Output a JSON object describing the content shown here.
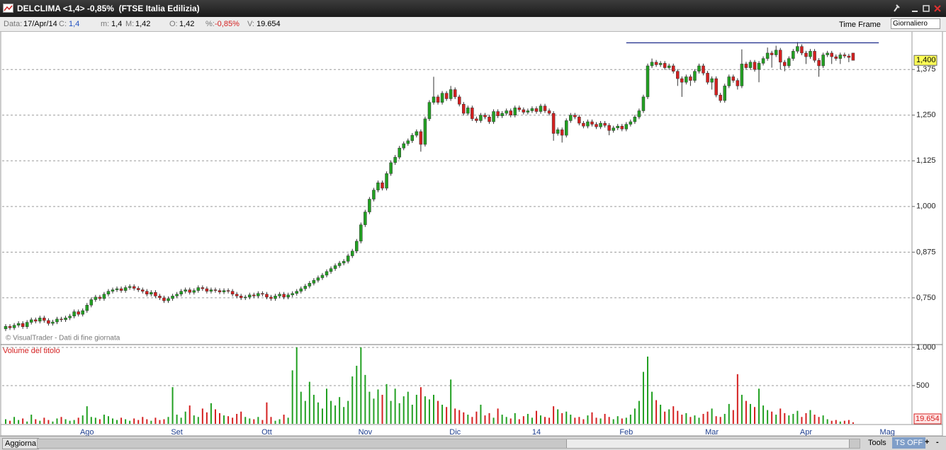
{
  "header": {
    "title": "DELCLIMA <1,4> -0,85%  (FTSE Italia Edilizia)",
    "fields": [
      {
        "label": "Data:",
        "value": "17/Apr/14"
      },
      {
        "label": "C:",
        "value": "1,4"
      },
      {
        "label": "m:",
        "value": "1,4"
      },
      {
        "label": "M:",
        "value": "1,42"
      },
      {
        "label": "O:",
        "value": "1,42"
      },
      {
        "label": "%:",
        "value": "-0,85%"
      },
      {
        "label": "V:",
        "value": "19.654"
      }
    ],
    "time_frame": "Time Frame",
    "interval": "Giornaliero"
  },
  "chart_data": {
    "type": "candlestick",
    "categories": [
      null,
      null,
      null,
      null,
      null,
      null,
      null,
      null,
      null,
      null,
      null,
      null,
      null,
      null,
      null,
      null,
      null,
      null,
      null,
      "Ago",
      null,
      null,
      null,
      null,
      null,
      null,
      null,
      null,
      null,
      null,
      null,
      null,
      null,
      null,
      null,
      null,
      null,
      null,
      null,
      null,
      "Set",
      null,
      null,
      null,
      null,
      null,
      null,
      null,
      null,
      null,
      null,
      null,
      null,
      null,
      null,
      null,
      null,
      null,
      null,
      null,
      null,
      "Ott",
      null,
      null,
      null,
      null,
      null,
      null,
      null,
      null,
      null,
      null,
      null,
      null,
      null,
      null,
      null,
      null,
      null,
      null,
      null,
      null,
      null,
      null,
      "Nov",
      null,
      null,
      null,
      null,
      null,
      null,
      null,
      null,
      null,
      null,
      null,
      null,
      null,
      null,
      null,
      null,
      null,
      null,
      null,
      null,
      "Dic",
      null,
      null,
      null,
      null,
      null,
      null,
      null,
      null,
      null,
      null,
      null,
      null,
      null,
      null,
      null,
      null,
      null,
      null,
      "14",
      null,
      null,
      null,
      null,
      null,
      null,
      null,
      null,
      null,
      null,
      null,
      null,
      null,
      null,
      null,
      null,
      null,
      null,
      null,
      null,
      "Feb",
      null,
      null,
      null,
      null,
      null,
      null,
      null,
      null,
      null,
      null,
      null,
      null,
      null,
      null,
      null,
      null,
      null,
      null,
      null,
      "Mar",
      null,
      null,
      null,
      null,
      null,
      null,
      null,
      null,
      null,
      null,
      null,
      null,
      null,
      null,
      null,
      null,
      null,
      null,
      null,
      null,
      null,
      "Apr",
      null,
      null,
      null,
      null,
      null,
      null,
      null,
      null,
      null,
      null,
      null,
      null,
      null,
      null,
      null,
      null,
      null,
      null,
      "Mag",
      null,
      null,
      null,
      null,
      null
    ],
    "open": [
      0.665,
      0.672,
      0.668,
      0.675,
      0.68,
      0.671,
      0.683,
      0.69,
      0.686,
      0.695,
      0.688,
      0.68,
      0.684,
      0.692,
      0.69,
      0.695,
      0.7,
      0.712,
      0.705,
      0.715,
      0.73,
      0.745,
      0.752,
      0.748,
      0.76,
      0.768,
      0.772,
      0.775,
      0.77,
      0.778,
      0.781,
      0.776,
      0.772,
      0.768,
      0.76,
      0.765,
      0.755,
      0.75,
      0.742,
      0.748,
      0.755,
      0.76,
      0.768,
      0.772,
      0.765,
      0.77,
      0.778,
      0.775,
      0.768,
      0.772,
      0.77,
      0.766,
      0.77,
      0.768,
      0.76,
      0.755,
      0.75,
      0.752,
      0.758,
      0.755,
      0.762,
      0.76,
      0.752,
      0.748,
      0.755,
      0.76,
      0.752,
      0.758,
      0.762,
      0.768,
      0.775,
      0.782,
      0.79,
      0.798,
      0.805,
      0.812,
      0.822,
      0.83,
      0.838,
      0.845,
      0.85,
      0.865,
      0.878,
      0.905,
      0.95,
      0.985,
      1.02,
      1.045,
      1.065,
      1.05,
      1.09,
      1.12,
      1.135,
      1.16,
      1.172,
      1.18,
      1.195,
      1.205,
      1.17,
      1.24,
      1.285,
      1.3,
      1.285,
      1.31,
      1.295,
      1.32,
      1.3,
      1.28,
      1.255,
      1.27,
      1.24,
      1.235,
      1.25,
      1.245,
      1.232,
      1.26,
      1.248,
      1.255,
      1.262,
      1.25,
      1.27,
      1.265,
      1.258,
      1.262,
      1.268,
      1.26,
      1.275,
      1.262,
      1.255,
      1.2,
      1.21,
      1.195,
      1.235,
      1.25,
      1.245,
      1.228,
      1.22,
      1.232,
      1.225,
      1.218,
      1.228,
      1.222,
      1.208,
      1.215,
      1.22,
      1.212,
      1.225,
      1.232,
      1.245,
      1.262,
      1.3,
      1.385,
      1.395,
      1.388,
      1.392,
      1.38,
      1.385,
      1.37,
      1.35,
      1.34,
      1.355,
      1.345,
      1.37,
      1.385,
      1.365,
      1.34,
      1.35,
      1.305,
      1.29,
      1.33,
      1.355,
      1.345,
      1.33,
      1.39,
      1.38,
      1.395,
      1.375,
      1.392,
      1.405,
      1.42,
      1.415,
      1.428,
      1.395,
      1.385,
      1.405,
      1.425,
      1.438,
      1.42,
      1.41,
      1.425,
      1.4,
      1.385,
      1.415,
      1.42,
      1.41,
      1.405,
      1.415,
      1.412,
      1.42,
      null,
      null,
      null,
      null,
      null,
      null,
      null,
      null,
      null,
      null,
      null,
      null,
      null
    ],
    "high": [
      0.678,
      0.678,
      0.681,
      0.686,
      0.686,
      0.689,
      0.696,
      0.696,
      0.701,
      0.701,
      0.694,
      0.69,
      0.698,
      0.698,
      0.701,
      0.706,
      0.718,
      0.718,
      0.721,
      0.736,
      0.751,
      0.758,
      0.758,
      0.766,
      0.774,
      0.778,
      0.781,
      0.781,
      0.784,
      0.787,
      0.787,
      0.782,
      0.778,
      0.774,
      0.771,
      0.771,
      0.761,
      0.756,
      0.754,
      0.761,
      0.766,
      0.774,
      0.778,
      0.778,
      0.776,
      0.784,
      0.784,
      0.781,
      0.778,
      0.778,
      0.776,
      0.776,
      0.776,
      0.774,
      0.766,
      0.761,
      0.758,
      0.764,
      0.764,
      0.768,
      0.768,
      0.766,
      0.758,
      0.761,
      0.766,
      0.766,
      0.764,
      0.768,
      0.774,
      0.781,
      0.788,
      0.796,
      0.804,
      0.811,
      0.818,
      0.828,
      0.836,
      0.844,
      0.851,
      0.856,
      0.871,
      0.884,
      0.911,
      0.956,
      0.991,
      1.026,
      1.051,
      1.071,
      1.071,
      1.096,
      1.126,
      1.141,
      1.166,
      1.178,
      1.186,
      1.201,
      1.211,
      1.211,
      1.246,
      1.291,
      1.355,
      1.306,
      1.316,
      1.316,
      1.33,
      1.326,
      1.306,
      1.286,
      1.276,
      1.276,
      1.246,
      1.256,
      1.256,
      1.251,
      1.266,
      1.266,
      1.261,
      1.268,
      1.268,
      1.276,
      1.276,
      1.271,
      1.268,
      1.274,
      1.274,
      1.281,
      1.281,
      1.268,
      1.261,
      1.216,
      1.216,
      1.241,
      1.256,
      1.256,
      1.251,
      1.234,
      1.238,
      1.238,
      1.231,
      1.234,
      1.234,
      1.228,
      1.221,
      1.226,
      1.226,
      1.231,
      1.238,
      1.251,
      1.268,
      1.306,
      1.391,
      1.405,
      1.401,
      1.398,
      1.398,
      1.391,
      1.391,
      1.376,
      1.356,
      1.361,
      1.361,
      1.376,
      1.391,
      1.391,
      1.371,
      1.356,
      1.356,
      1.311,
      1.336,
      1.361,
      1.361,
      1.351,
      1.43,
      1.396,
      1.401,
      1.401,
      1.398,
      1.411,
      1.435,
      1.426,
      1.44,
      1.434,
      1.401,
      1.411,
      1.431,
      1.45,
      1.444,
      1.426,
      1.431,
      1.431,
      1.406,
      1.421,
      1.426,
      1.426,
      1.416,
      1.421,
      1.421,
      1.418,
      1.42,
      null,
      null,
      null,
      null,
      null,
      null,
      null,
      null,
      null,
      null,
      null,
      null,
      null
    ],
    "low": [
      0.659,
      0.662,
      0.662,
      0.669,
      0.665,
      0.665,
      0.677,
      0.68,
      0.68,
      0.682,
      0.674,
      0.674,
      0.678,
      0.684,
      0.684,
      0.689,
      0.694,
      0.699,
      0.699,
      0.709,
      0.724,
      0.739,
      0.742,
      0.742,
      0.754,
      0.762,
      0.766,
      0.764,
      0.764,
      0.772,
      0.77,
      0.766,
      0.762,
      0.754,
      0.754,
      0.749,
      0.744,
      0.736,
      0.736,
      0.742,
      0.749,
      0.754,
      0.762,
      0.759,
      0.759,
      0.764,
      0.769,
      0.762,
      0.762,
      0.764,
      0.76,
      0.76,
      0.762,
      0.754,
      0.749,
      0.744,
      0.744,
      0.746,
      0.749,
      0.749,
      0.754,
      0.746,
      0.742,
      0.742,
      0.749,
      0.746,
      0.746,
      0.752,
      0.756,
      0.762,
      0.769,
      0.776,
      0.784,
      0.792,
      0.799,
      0.806,
      0.816,
      0.824,
      0.832,
      0.839,
      0.844,
      0.859,
      0.872,
      0.899,
      0.944,
      0.979,
      1.014,
      1.039,
      1.044,
      1.044,
      1.084,
      1.114,
      1.129,
      1.154,
      1.166,
      1.174,
      1.189,
      1.15,
      1.164,
      1.234,
      1.279,
      1.279,
      1.279,
      1.289,
      1.289,
      1.294,
      1.274,
      1.249,
      1.249,
      1.234,
      1.229,
      1.229,
      1.239,
      1.226,
      1.226,
      1.242,
      1.242,
      1.249,
      1.244,
      1.244,
      1.259,
      1.252,
      1.252,
      1.256,
      1.254,
      1.254,
      1.256,
      1.249,
      1.18,
      1.194,
      1.175,
      1.189,
      1.229,
      1.239,
      1.222,
      1.214,
      1.214,
      1.219,
      1.212,
      1.212,
      1.216,
      1.195,
      1.202,
      1.209,
      1.206,
      1.206,
      1.219,
      1.226,
      1.239,
      1.256,
      1.294,
      1.379,
      1.382,
      1.382,
      1.374,
      1.374,
      1.364,
      1.33,
      1.3,
      1.334,
      1.33,
      1.339,
      1.364,
      1.359,
      1.334,
      1.32,
      1.299,
      1.284,
      1.284,
      1.324,
      1.339,
      1.32,
      1.324,
      1.374,
      1.374,
      1.369,
      1.34,
      1.386,
      1.399,
      1.38,
      1.409,
      1.375,
      1.37,
      1.379,
      1.399,
      1.419,
      1.414,
      1.39,
      1.404,
      1.394,
      1.355,
      1.379,
      1.409,
      1.39,
      1.399,
      1.39,
      1.406,
      1.395,
      1.4,
      null,
      null,
      null,
      null,
      null,
      null,
      null,
      null,
      null,
      null,
      null,
      null,
      null
    ],
    "close": [
      0.672,
      0.668,
      0.675,
      0.68,
      0.671,
      0.683,
      0.69,
      0.686,
      0.695,
      0.688,
      0.68,
      0.684,
      0.692,
      0.69,
      0.695,
      0.7,
      0.712,
      0.705,
      0.715,
      0.73,
      0.745,
      0.752,
      0.748,
      0.76,
      0.768,
      0.772,
      0.775,
      0.77,
      0.778,
      0.781,
      0.776,
      0.772,
      0.768,
      0.76,
      0.765,
      0.755,
      0.75,
      0.742,
      0.748,
      0.755,
      0.76,
      0.768,
      0.772,
      0.765,
      0.77,
      0.778,
      0.775,
      0.768,
      0.772,
      0.77,
      0.766,
      0.77,
      0.768,
      0.76,
      0.755,
      0.75,
      0.752,
      0.758,
      0.755,
      0.762,
      0.76,
      0.752,
      0.748,
      0.755,
      0.76,
      0.752,
      0.758,
      0.762,
      0.768,
      0.775,
      0.782,
      0.79,
      0.798,
      0.805,
      0.812,
      0.822,
      0.83,
      0.838,
      0.845,
      0.85,
      0.865,
      0.878,
      0.905,
      0.95,
      0.985,
      1.02,
      1.045,
      1.065,
      1.05,
      1.09,
      1.12,
      1.135,
      1.16,
      1.172,
      1.18,
      1.195,
      1.205,
      1.17,
      1.24,
      1.285,
      1.3,
      1.285,
      1.31,
      1.295,
      1.32,
      1.3,
      1.28,
      1.255,
      1.27,
      1.24,
      1.235,
      1.25,
      1.245,
      1.232,
      1.26,
      1.248,
      1.255,
      1.262,
      1.25,
      1.27,
      1.265,
      1.258,
      1.262,
      1.268,
      1.26,
      1.275,
      1.262,
      1.255,
      1.2,
      1.21,
      1.195,
      1.235,
      1.25,
      1.245,
      1.228,
      1.22,
      1.232,
      1.225,
      1.218,
      1.228,
      1.222,
      1.208,
      1.215,
      1.22,
      1.212,
      1.225,
      1.232,
      1.245,
      1.262,
      1.3,
      1.385,
      1.395,
      1.388,
      1.392,
      1.38,
      1.385,
      1.37,
      1.35,
      1.34,
      1.355,
      1.345,
      1.37,
      1.385,
      1.365,
      1.34,
      1.35,
      1.305,
      1.29,
      1.33,
      1.355,
      1.345,
      1.33,
      1.39,
      1.38,
      1.395,
      1.375,
      1.392,
      1.405,
      1.42,
      1.415,
      1.428,
      1.395,
      1.385,
      1.405,
      1.425,
      1.438,
      1.42,
      1.41,
      1.425,
      1.4,
      1.385,
      1.415,
      1.42,
      1.41,
      1.405,
      1.415,
      1.412,
      1.408,
      1.4,
      null,
      null,
      null,
      null,
      null,
      null,
      null,
      null,
      null,
      null,
      null,
      null,
      null
    ],
    "up_color": "#22a022",
    "down_color": "#d42020",
    "ylim": [
      0.624,
      1.478
    ],
    "yticks": [
      {
        "value": 0.75,
        "label": "0,750"
      },
      {
        "value": 0.875,
        "label": "0,875"
      },
      {
        "value": 1.0,
        "label": "1,000"
      },
      {
        "value": 1.125,
        "label": "1,125"
      },
      {
        "value": 1.25,
        "label": "1,250"
      },
      {
        "value": 1.375,
        "label": "1,375"
      }
    ],
    "grid": true,
    "last_price": {
      "value": 1.4,
      "label": "1,400"
    },
    "hline": {
      "value": 1.448,
      "from": 145,
      "to": 204,
      "color": "#1c2a8a"
    },
    "credit": "© VisualTrader - Dati di fine giornata",
    "volume": {
      "type": "bar",
      "title": "Volume del titolo",
      "values": [
        60,
        40,
        90,
        50,
        70,
        30,
        120,
        60,
        40,
        80,
        50,
        30,
        70,
        90,
        60,
        40,
        50,
        80,
        110,
        230,
        90,
        80,
        60,
        120,
        100,
        70,
        50,
        80,
        60,
        40,
        70,
        50,
        90,
        60,
        40,
        80,
        50,
        60,
        90,
        480,
        120,
        80,
        160,
        240,
        110,
        90,
        200,
        150,
        270,
        190,
        140,
        110,
        100,
        80,
        130,
        160,
        90,
        70,
        60,
        90,
        50,
        280,
        90,
        40,
        60,
        120,
        80,
        700,
        1000,
        420,
        300,
        550,
        380,
        280,
        200,
        460,
        300,
        240,
        350,
        220,
        300,
        620,
        760,
        1000,
        640,
        420,
        330,
        450,
        380,
        520,
        300,
        460,
        270,
        360,
        420,
        250,
        380,
        480,
        360,
        320,
        380,
        300,
        250,
        220,
        580,
        200,
        180,
        150,
        120,
        90,
        160,
        250,
        110,
        140,
        80,
        200,
        120,
        90,
        70,
        140,
        60,
        100,
        130,
        80,
        170,
        110,
        90,
        80,
        230,
        190,
        140,
        160,
        120,
        80,
        90,
        60,
        110,
        150,
        80,
        70,
        130,
        90,
        60,
        100,
        70,
        80,
        120,
        200,
        300,
        680,
        880,
        420,
        310,
        250,
        160,
        190,
        230,
        170,
        120,
        140,
        90,
        110,
        80,
        130,
        160,
        200,
        100,
        90,
        130,
        260,
        180,
        650,
        380,
        300,
        260,
        220,
        460,
        240,
        180,
        160,
        120,
        200,
        140,
        110,
        130,
        170,
        90,
        140,
        180,
        120,
        90,
        110,
        60,
        40,
        50,
        30,
        40,
        50,
        19.654,
        null,
        null,
        null,
        null,
        null,
        null,
        null,
        null,
        null,
        null,
        null,
        null,
        null
      ],
      "ylim": [
        0,
        1028
      ],
      "yticks": [
        {
          "value": 1000,
          "label": "1.000"
        },
        500
      ],
      "last_value": {
        "value": 19.654,
        "label": "19.654"
      }
    }
  },
  "footer": {
    "refresh": "Aggiorna",
    "tools": "Tools",
    "ts": "TS OFF",
    "plus": "+",
    "minus": "-"
  }
}
